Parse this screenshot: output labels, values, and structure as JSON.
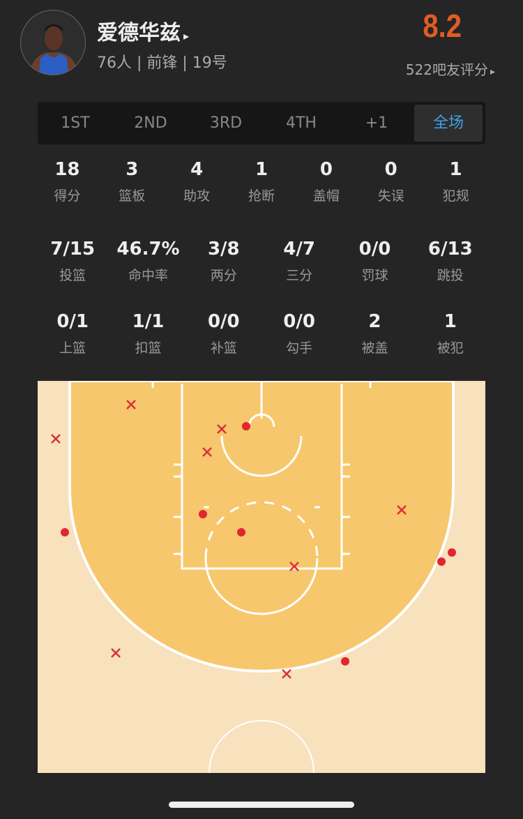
{
  "player": {
    "name": "爱德华兹",
    "name_arrow": "▸",
    "info": "76人 | 前锋 | 19号",
    "rating": "8.2",
    "votes": "522吧友评分",
    "votes_arrow": "▸"
  },
  "tabs": [
    {
      "label": "1ST"
    },
    {
      "label": "2ND"
    },
    {
      "label": "3RD"
    },
    {
      "label": "4TH"
    },
    {
      "label": "+1"
    },
    {
      "label": "全场",
      "active": true
    }
  ],
  "stats_row1": [
    {
      "value": "18",
      "label": "得分"
    },
    {
      "value": "3",
      "label": "篮板"
    },
    {
      "value": "4",
      "label": "助攻"
    },
    {
      "value": "1",
      "label": "抢断"
    },
    {
      "value": "0",
      "label": "盖帽"
    },
    {
      "value": "0",
      "label": "失误"
    },
    {
      "value": "1",
      "label": "犯规"
    }
  ],
  "stats_row2": [
    {
      "value": "7/15",
      "label": "投篮"
    },
    {
      "value": "46.7%",
      "label": "命中率"
    },
    {
      "value": "3/8",
      "label": "两分"
    },
    {
      "value": "4/7",
      "label": "三分"
    },
    {
      "value": "0/0",
      "label": "罚球"
    },
    {
      "value": "6/13",
      "label": "跳投"
    }
  ],
  "stats_row3": [
    {
      "value": "0/1",
      "label": "上篮"
    },
    {
      "value": "1/1",
      "label": "扣篮"
    },
    {
      "value": "0/0",
      "label": "补篮"
    },
    {
      "value": "0/0",
      "label": "勾手"
    },
    {
      "value": "2",
      "label": "被盖"
    },
    {
      "value": "1",
      "label": "被犯"
    }
  ],
  "shot_chart": {
    "made_color": "#e0262f",
    "miss_color": "#d9303a",
    "paint_color": "#f6c76c",
    "court_color": "#f8e1bd",
    "shots": [
      {
        "result": "miss"
      },
      {
        "result": "miss"
      },
      {
        "result": "miss"
      },
      {
        "result": "miss"
      },
      {
        "result": "miss"
      },
      {
        "result": "miss"
      },
      {
        "result": "miss"
      },
      {
        "result": "miss"
      },
      {
        "result": "made"
      },
      {
        "result": "made"
      },
      {
        "result": "made"
      },
      {
        "result": "made"
      },
      {
        "result": "made"
      },
      {
        "result": "made"
      },
      {
        "result": "made"
      }
    ]
  },
  "colors": {
    "accent": "#3ea0e8",
    "rating": "#e25b25"
  }
}
